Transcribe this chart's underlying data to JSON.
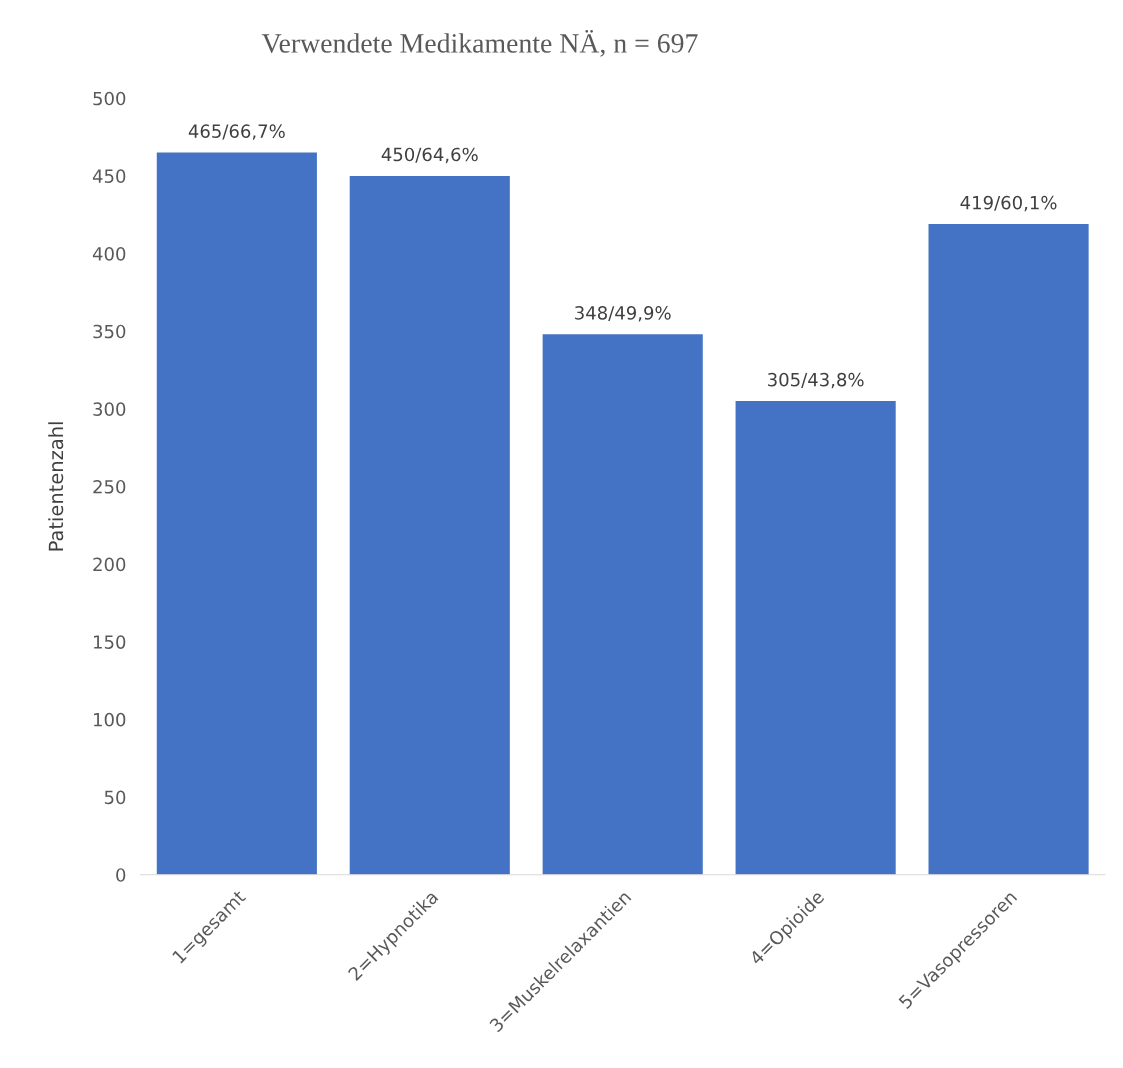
{
  "chart_data": {
    "type": "bar",
    "title": "Verwendete Medikamente NÄ, n = 697",
    "ylabel": "Patientenzahl",
    "categories": [
      "1=gesamt",
      "2=Hypnotika",
      "3=Muskelrelaxantien",
      "4=Opioide",
      "5=Vasopressoren"
    ],
    "values": [
      465,
      450,
      348,
      305,
      419
    ],
    "value_labels": [
      "465/66,7%",
      "450/64,6%",
      "348/49,9%",
      "305/43,8%",
      "419/60,1%"
    ],
    "color": "#4472c4",
    "ylim": [
      0,
      500
    ],
    "yticks": [
      0,
      50,
      100,
      150,
      200,
      250,
      300,
      350,
      400,
      450,
      500
    ],
    "grid": false,
    "legend": false
  }
}
